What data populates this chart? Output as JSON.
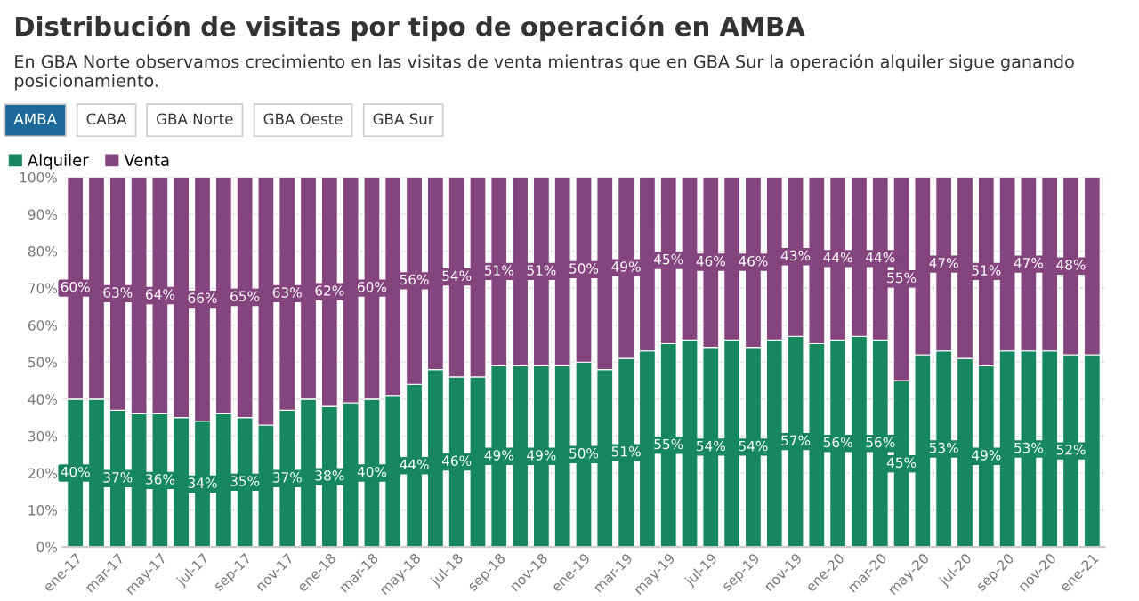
{
  "chart_data": {
    "type": "bar",
    "stacked": true,
    "title": "Distribución de visitas por tipo de operación en AMBA",
    "subtitle": "En GBA Norte observamos crecimiento en las visitas de venta mientras que en GBA Sur la operación alquiler sigue ganando posicionamiento.",
    "annotations": [
      "AMBA",
      "CABA",
      "GBA Norte",
      "GBA Oeste",
      "GBA Sur"
    ],
    "categories": [
      "ene-17",
      null,
      "mar-17",
      null,
      "may-17",
      null,
      "jul-17",
      null,
      "sep-17",
      null,
      "nov-17",
      null,
      "ene-18",
      null,
      "mar-18",
      null,
      "may-18",
      null,
      "jul-18",
      null,
      "sep-18",
      null,
      "nov-18",
      null,
      "ene-19",
      null,
      "mar-19",
      null,
      "may-19",
      null,
      "jul-19",
      null,
      "sep-19",
      null,
      "nov-19",
      null,
      "ene-20",
      null,
      "mar-20",
      null,
      "may-20",
      null,
      "jul-20",
      null,
      "sep-20",
      null,
      "nov-20",
      null,
      "ene-21"
    ],
    "series": [
      {
        "name": "Alquiler",
        "color": "#16875f",
        "values": [
          40,
          40,
          37,
          36,
          36,
          35,
          34,
          36,
          35,
          33,
          37,
          40,
          38,
          39,
          40,
          41,
          44,
          48,
          46,
          46,
          49,
          49,
          49,
          49,
          50,
          48,
          51,
          53,
          55,
          56,
          54,
          56,
          54,
          56,
          57,
          55,
          56,
          57,
          56,
          45,
          52,
          53,
          51,
          49,
          53,
          53,
          53,
          52,
          52
        ],
        "value_labels": [
          "40%",
          null,
          "37%",
          null,
          "36%",
          null,
          "34%",
          null,
          "35%",
          null,
          "37%",
          null,
          "38%",
          null,
          "40%",
          null,
          "44%",
          null,
          "46%",
          null,
          "49%",
          null,
          "49%",
          null,
          "50%",
          null,
          "51%",
          null,
          "55%",
          null,
          "54%",
          null,
          "54%",
          null,
          "57%",
          null,
          "56%",
          null,
          "56%",
          "45%",
          null,
          "53%",
          null,
          "49%",
          null,
          "53%",
          null,
          "52%",
          null
        ]
      },
      {
        "name": "Venta",
        "color": "#84457f",
        "values": [
          60,
          60,
          63,
          64,
          64,
          65,
          66,
          64,
          65,
          67,
          63,
          60,
          62,
          61,
          60,
          59,
          56,
          52,
          54,
          54,
          51,
          51,
          51,
          51,
          50,
          52,
          49,
          47,
          45,
          44,
          46,
          44,
          46,
          44,
          43,
          45,
          44,
          43,
          44,
          55,
          48,
          47,
          49,
          51,
          47,
          47,
          47,
          48,
          48
        ],
        "value_labels": [
          "60%",
          null,
          "63%",
          null,
          "64%",
          null,
          "66%",
          null,
          "65%",
          null,
          "63%",
          null,
          "62%",
          null,
          "60%",
          null,
          "56%",
          null,
          "54%",
          null,
          "51%",
          null,
          "51%",
          null,
          "50%",
          null,
          "49%",
          null,
          "45%",
          null,
          "46%",
          null,
          "46%",
          null,
          "43%",
          null,
          "44%",
          null,
          "44%",
          "55%",
          null,
          "47%",
          null,
          "51%",
          null,
          "47%",
          null,
          "48%",
          null
        ]
      }
    ],
    "ylim": [
      0,
      100
    ],
    "yticks": [
      {
        "value": 0,
        "label": "0%"
      },
      {
        "value": 10,
        "label": "10%"
      },
      {
        "value": 20,
        "label": "20%"
      },
      {
        "value": 30,
        "label": "30%"
      },
      {
        "value": 40,
        "label": "40%"
      },
      {
        "value": 50,
        "label": "50%"
      },
      {
        "value": 60,
        "label": "60%"
      },
      {
        "value": 70,
        "label": "70%"
      },
      {
        "value": 80,
        "label": "80%"
      },
      {
        "value": 90,
        "label": "90%"
      },
      {
        "value": 100,
        "label": "100%"
      }
    ],
    "grid": "y",
    "legend": "top left"
  }
}
